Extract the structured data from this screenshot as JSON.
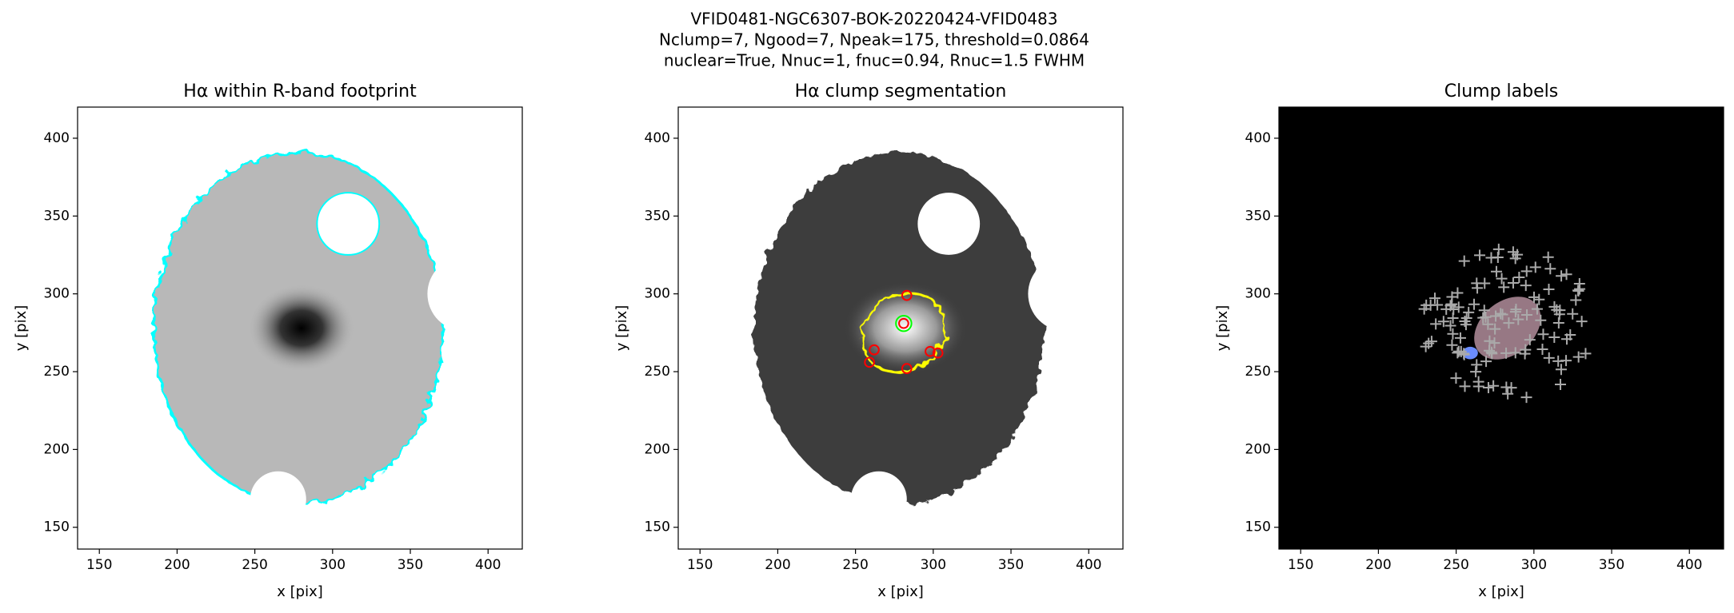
{
  "suptitle": [
    "VFID0481-NGC6307-BOK-20220424-VFID0483",
    "Nclump=7, Ngood=7, Npeak=175, threshold=0.0864",
    "nuclear=True, Nnuc=1, fnuc=0.94, Rnuc=1.5 FWHM"
  ],
  "chart_data": [
    {
      "type": "image",
      "title": "Hα within R-band footprint",
      "xlabel": "x [pix]",
      "ylabel": "y [pix]",
      "background": "#ffffff",
      "xlim": [
        136,
        422
      ],
      "ylim": [
        136,
        420
      ],
      "xticks": [
        150,
        200,
        250,
        300,
        350,
        400
      ],
      "yticks": [
        150,
        200,
        250,
        300,
        350,
        400
      ]
    },
    {
      "type": "image",
      "title": "Hα clump segmentation",
      "xlabel": "x [pix]",
      "ylabel": "y [pix]",
      "background": "#ffffff",
      "xlim": [
        136,
        422
      ],
      "ylim": [
        136,
        420
      ],
      "xticks": [
        150,
        200,
        250,
        300,
        350,
        400
      ],
      "yticks": [
        150,
        200,
        250,
        300,
        350,
        400
      ]
    },
    {
      "type": "image",
      "title": "Clump labels",
      "xlabel": "x [pix]",
      "ylabel": "y [pix]",
      "background": "#000000",
      "xlim": [
        136,
        422
      ],
      "ylim": [
        136,
        420
      ],
      "xticks": [
        150,
        200,
        250,
        300,
        350,
        400
      ],
      "yticks": [
        150,
        200,
        250,
        300,
        350,
        400
      ]
    }
  ]
}
